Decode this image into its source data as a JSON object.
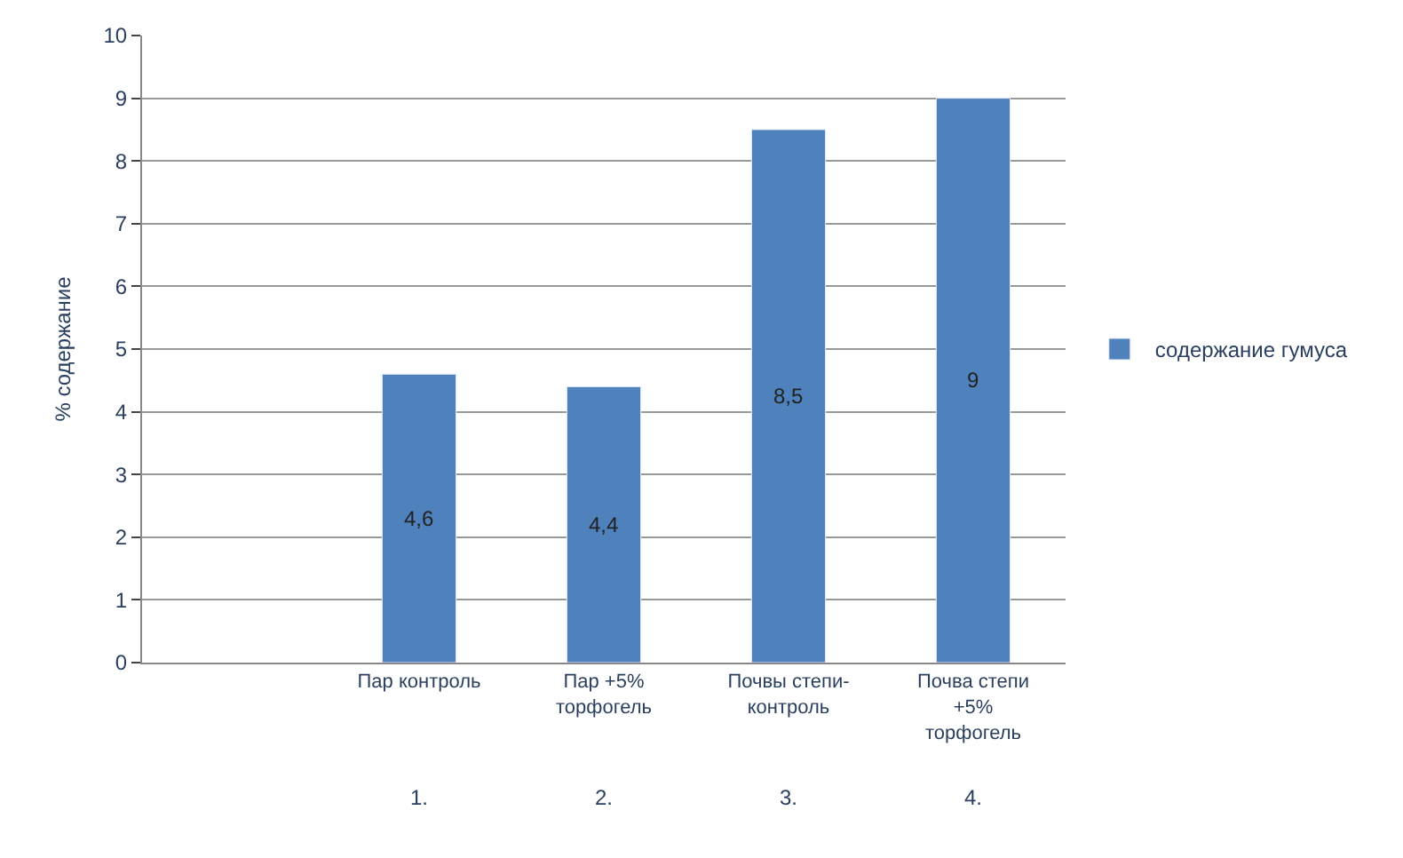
{
  "chart_data": {
    "type": "bar",
    "ylabel": "% содержание",
    "categories": [
      null,
      "Пар контроль",
      "Пар +5% торфогель",
      "Почвы степи-контроль",
      "Почва степи +5% торфогель"
    ],
    "series": [
      {
        "name": "содержание гумуса",
        "color": "#4f81bd",
        "values": [
          null,
          4.6,
          4.4,
          8.5,
          9
        ],
        "value_labels": [
          null,
          "4,6",
          "4,4",
          "8,5",
          "9"
        ]
      }
    ],
    "annotations": [
      "1.",
      "2.",
      "3.",
      "4."
    ],
    "ylim": [
      0,
      10
    ],
    "yticks": [
      0,
      1,
      2,
      3,
      4,
      5,
      6,
      7,
      8,
      9,
      10
    ],
    "grid": "y",
    "legend": "right"
  }
}
